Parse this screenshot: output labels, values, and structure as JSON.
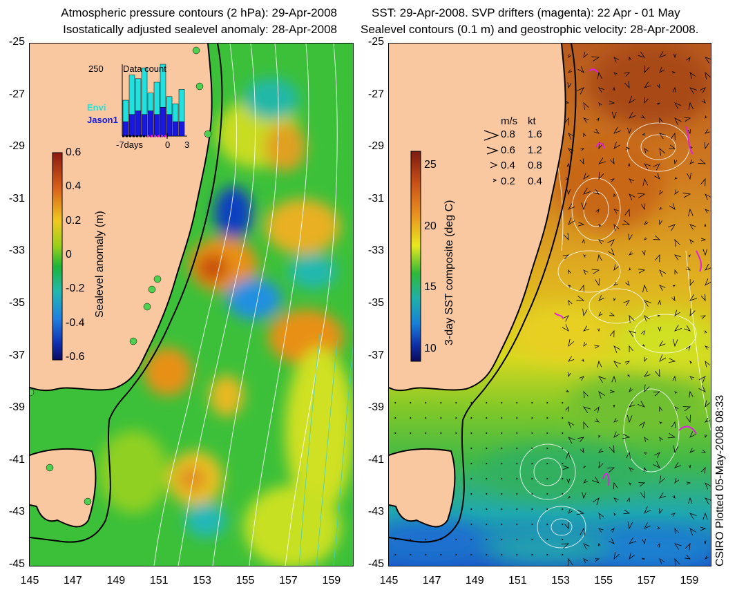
{
  "left_panel": {
    "title_line1": "Atmospheric pressure contours (2 hPa): 29-Apr-2008",
    "title_line2": "Isostatically adjusted sealevel anomaly: 28-Apr-2008",
    "colorbar": {
      "label": "Sealevel anomaly (m)",
      "ticks": [
        "0.6",
        "0.4",
        "0.2",
        "0",
        "-0.2",
        "-0.4",
        "-0.6"
      ],
      "colors": [
        "#8b1a10",
        "#d8601a",
        "#f0b020",
        "#e8e020",
        "#9ad01a",
        "#1db43a",
        "#22b8b0",
        "#2080e0",
        "#1030b0",
        "#0a0a60"
      ]
    },
    "inset": {
      "title": "Data count",
      "y_max": "250",
      "series": [
        "Envi",
        "Jason1"
      ],
      "series_colors": [
        "#20e0e0",
        "#1818e0"
      ],
      "x_ticks": [
        "-7days",
        "0",
        "3"
      ],
      "envi_fraction": [
        0.3,
        0.55,
        0.45,
        0.65,
        0.25,
        0.45,
        0.6,
        0.25,
        0.25,
        0.45
      ],
      "jason_fraction": [
        0.2,
        0.3,
        0.35,
        0.3,
        0.35,
        0.3,
        0.4,
        0.3,
        0.2,
        0.2
      ]
    },
    "tide_gauge_color": "#50d050"
  },
  "right_panel": {
    "title_line1": "SST: 29-Apr-2008. SVP drifters (magenta): 22 Apr - 01 May",
    "title_line2": "Sealevel contours (0.1 m) and geostrophic velocity: 28-Apr-2008.",
    "colorbar": {
      "label": "3-day SST composite (deg C)",
      "ticks": [
        "25",
        "20",
        "15",
        "10"
      ],
      "colors": [
        "#7a1a10",
        "#c85018",
        "#e89020",
        "#f0c820",
        "#e8e820",
        "#a8d820",
        "#30b838",
        "#20b0a8",
        "#1880d8",
        "#1030a8",
        "#0a0a5a"
      ]
    },
    "velocity_legend": {
      "headers": [
        "m/s",
        "kt"
      ],
      "rows": [
        {
          "ms": "0.8",
          "kt": "1.6"
        },
        {
          "ms": "0.6",
          "kt": "1.2"
        },
        {
          "ms": "0.4",
          "kt": "0.8"
        },
        {
          "ms": "0.2",
          "kt": "0.4"
        }
      ]
    },
    "drifter_color": "#e020e0"
  },
  "map_colors": {
    "land": "#f9c8a0",
    "coast": "#000000",
    "contour": "#ffffff"
  },
  "y_axis": {
    "ticks": [
      "-25",
      "-27",
      "-29",
      "-31",
      "-33",
      "-35",
      "-37",
      "-39",
      "-41",
      "-43",
      "-45"
    ]
  },
  "x_axis": {
    "ticks": [
      "145",
      "147",
      "149",
      "151",
      "153",
      "155",
      "157",
      "159"
    ]
  },
  "credit": "CSIRO Plotted 05-May-2008 08:33"
}
